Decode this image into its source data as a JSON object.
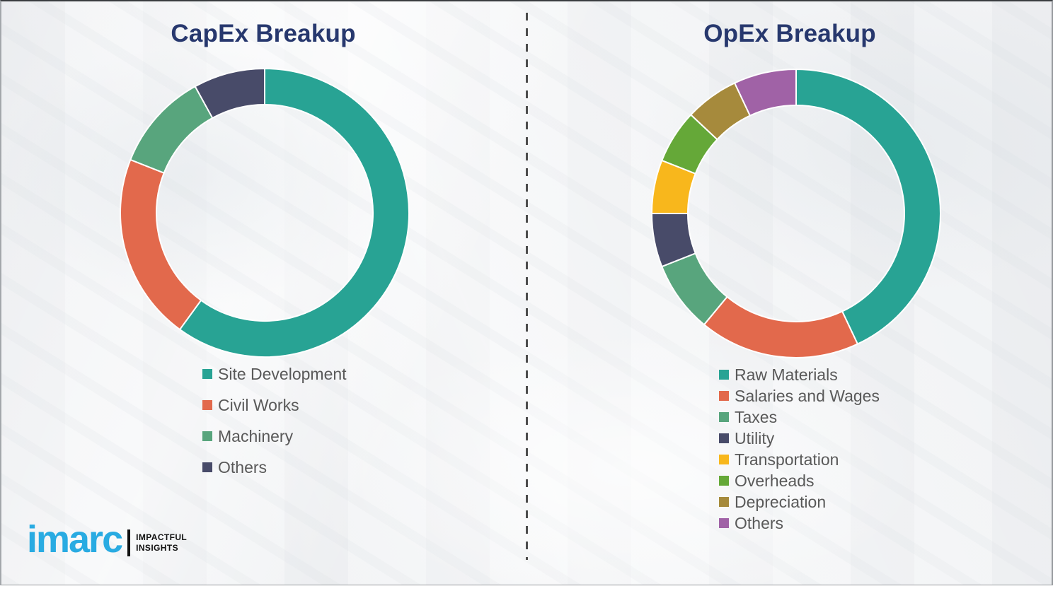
{
  "page": {
    "title_color": "#27386e",
    "legend_text_color": "#595959",
    "background_color": "#f0f1f3",
    "divider_color": "#4d4d4d"
  },
  "chart_data": [
    {
      "type": "pie",
      "subtype": "donut",
      "title": "CapEx Breakup",
      "categories": [
        "Site Development",
        "Civil Works",
        "Machinery",
        "Others"
      ],
      "values": [
        60,
        21,
        11,
        8
      ],
      "unit": "percent",
      "colors": [
        "#28a394",
        "#e2694c",
        "#58a57d",
        "#484b69"
      ],
      "start_angle_deg": 0,
      "direction": "clockwise",
      "legend_position": "bottom",
      "data_labels": "none"
    },
    {
      "type": "pie",
      "subtype": "donut",
      "title": "OpEx Breakup",
      "categories": [
        "Raw Materials",
        "Salaries and Wages",
        "Taxes",
        "Utility",
        "Transportation",
        "Overheads",
        "Depreciation",
        "Others"
      ],
      "values": [
        43,
        18,
        8,
        6,
        6,
        6,
        6,
        7
      ],
      "unit": "percent",
      "colors": [
        "#28a394",
        "#e2694c",
        "#58a57d",
        "#484b69",
        "#f8b71c",
        "#65a838",
        "#a68a3c",
        "#a062a6"
      ],
      "start_angle_deg": 0,
      "direction": "clockwise",
      "legend_position": "bottom",
      "data_labels": "none"
    }
  ],
  "logo": {
    "brand": "imarc",
    "brand_color": "#29abe2",
    "tagline_line1": "IMPACTFUL",
    "tagline_line2": "INSIGHTS"
  }
}
